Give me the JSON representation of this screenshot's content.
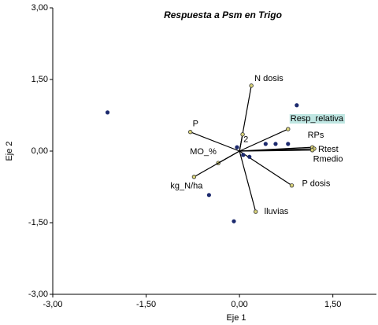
{
  "chart_data": {
    "type": "biplot",
    "title": "Respuesta a Psm en Trigo",
    "x_label": "Eje 1",
    "y_label": "Eje 2",
    "xlim": [
      -3,
      2.2
    ],
    "ylim": [
      -3,
      3
    ],
    "xticks": [
      {
        "value": -3,
        "label": "-3,00"
      },
      {
        "value": -1.5,
        "label": "-1,50"
      },
      {
        "value": 0,
        "label": "0,00"
      },
      {
        "value": 1.5,
        "label": "1,50"
      }
    ],
    "yticks": [
      {
        "value": -3,
        "label": "-3,00"
      },
      {
        "value": -1.5,
        "label": "-1,50"
      },
      {
        "value": 0,
        "label": "0,00"
      },
      {
        "value": 1.5,
        "label": "1,50"
      },
      {
        "value": 3,
        "label": "3,00"
      }
    ],
    "points": {
      "color": "#1c2a6e",
      "x": [
        -2.12,
        0.92,
        0.42,
        0.58,
        0.78,
        -0.04,
        0.06,
        0.16,
        -0.49,
        -0.09
      ],
      "y": [
        0.81,
        0.96,
        0.15,
        0.15,
        0.15,
        0.08,
        -0.08,
        -0.12,
        -0.92,
        -1.47
      ]
    },
    "vectors": {
      "color": "#000000",
      "marker_color": "#d8d27a",
      "highlight_color": "#bfe6e2",
      "labels": [
        "N dosis",
        "P",
        "MO_%",
        "kg_N/ha",
        "lluvias",
        "P dosis",
        "Resp_relativa",
        "RPs",
        "Rtest",
        "Rmedio",
        "2"
      ],
      "x": [
        0.19,
        -0.79,
        -0.34,
        -0.73,
        0.26,
        0.84,
        0.78,
        1.17,
        1.2,
        1.17,
        0.05
      ],
      "y": [
        1.37,
        0.4,
        -0.25,
        -0.54,
        -1.27,
        -0.72,
        0.46,
        0.08,
        0.05,
        0.02,
        0.35
      ],
      "highlighted": [
        false,
        false,
        false,
        false,
        false,
        false,
        true,
        false,
        false,
        false,
        false
      ]
    }
  }
}
